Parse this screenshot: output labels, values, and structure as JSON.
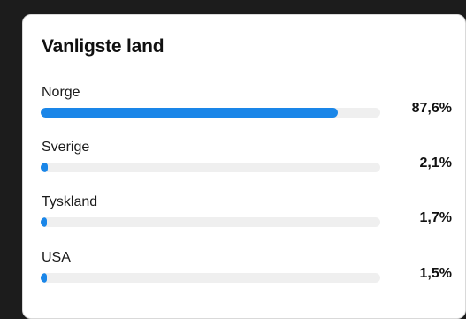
{
  "card": {
    "title": "Vanligste land",
    "bar_color": "#1a86e8",
    "track_color": "#efefef",
    "countries": [
      {
        "name": "Norge",
        "percent_label": "87,6%",
        "percent": 87.6
      },
      {
        "name": "Sverige",
        "percent_label": "2,1%",
        "percent": 2.1
      },
      {
        "name": "Tyskland",
        "percent_label": "1,7%",
        "percent": 1.7
      },
      {
        "name": "USA",
        "percent_label": "1,5%",
        "percent": 1.5
      }
    ]
  }
}
